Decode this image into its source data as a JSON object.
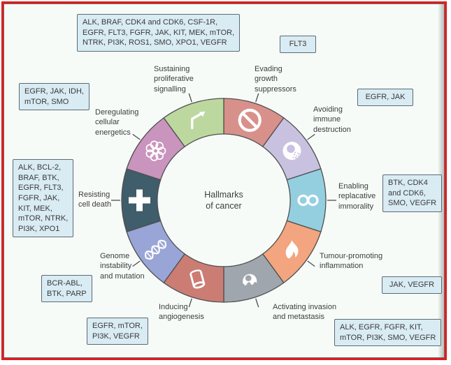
{
  "figure": {
    "frame_color": "#e51a1d",
    "background": "#f6fbf8",
    "box_fill": "#d9ebf3",
    "box_border": "#5c6a73",
    "wheel_outline": "#4f4f4f",
    "icon_color": "#ffffff"
  },
  "center": {
    "title": "Hallmarks\nof cancer"
  },
  "hallmarks": [
    {
      "id": "evading-growth-suppressors",
      "label": "Evading\ngrowth\nsuppressors",
      "color": "#d8908a",
      "icon": "no-entry-icon",
      "targets": "FLT3"
    },
    {
      "id": "avoiding-immune-destruction",
      "label": "Avoiding\nimmune\ndestruction",
      "color": "#c8c1e0",
      "icon": "immune-cell-icon",
      "targets": "EGFR, JAK"
    },
    {
      "id": "enabling-replicative-immortality",
      "label": "Enabling\nreplacative\nimmorality",
      "color": "#94cfe0",
      "icon": "infinity-icon",
      "targets": "BTK, CDK4\nand CDK6,\nSMO, VEGFR"
    },
    {
      "id": "tumour-promoting-inflammation",
      "label": "Tumour-promoting\ninflammation",
      "color": "#f3a57f",
      "icon": "flame-icon",
      "targets": "JAK, VEGFR"
    },
    {
      "id": "activating-invasion-and-metastasis",
      "label": "Activating invasion\nand metastasis",
      "color": "#9fa6ad",
      "icon": "invading-cell-icon",
      "targets": "ALK, EGFR, FGFR, KIT,\nmTOR, PI3K, SMO, VEGFR"
    },
    {
      "id": "inducing-angiogenesis",
      "label": "Inducing\nangiogenesis",
      "color": "#cb7d73",
      "icon": "vessel-icon",
      "targets": "EGFR, mTOR,\nPI3K, VEGFR"
    },
    {
      "id": "genome-instability-and-mutation",
      "label": "Genome\ninstability\nand mutation",
      "color": "#98a5d6",
      "icon": "dna-icon",
      "targets": "BCR-ABL,\nBTK, PARP"
    },
    {
      "id": "resisting-cell-death",
      "label": "Resisting\ncell death",
      "color": "#3f5d6b",
      "icon": "cross-icon",
      "targets": "ALK, BCL-2,\nBRAF, BTK,\nEGFR, FLT3,\nFGFR, JAK,\nKIT, MEK,\nmTOR, NTRK,\nPI3K, XPO1"
    },
    {
      "id": "deregulating-cellular-energetics",
      "label": "Deregulating\ncellular\nenergetics",
      "color": "#c994bd",
      "icon": "atom-icon",
      "targets": "EGFR, JAK, IDH,\nmTOR, SMO"
    },
    {
      "id": "sustaining-proliferative-signalling",
      "label": "Sustaining\nproliferative\nsignalling",
      "color": "#bcd89f",
      "icon": "arrow-icon",
      "targets": "ALK, BRAF, CDK4 and CDK6, CSF-1R,\nEGFR, FLT3,  FGFR, JAK, KIT, MEK, mTOR,\nNTRK, PI3K, ROS1, SMO, XPO1, VEGFR"
    }
  ]
}
